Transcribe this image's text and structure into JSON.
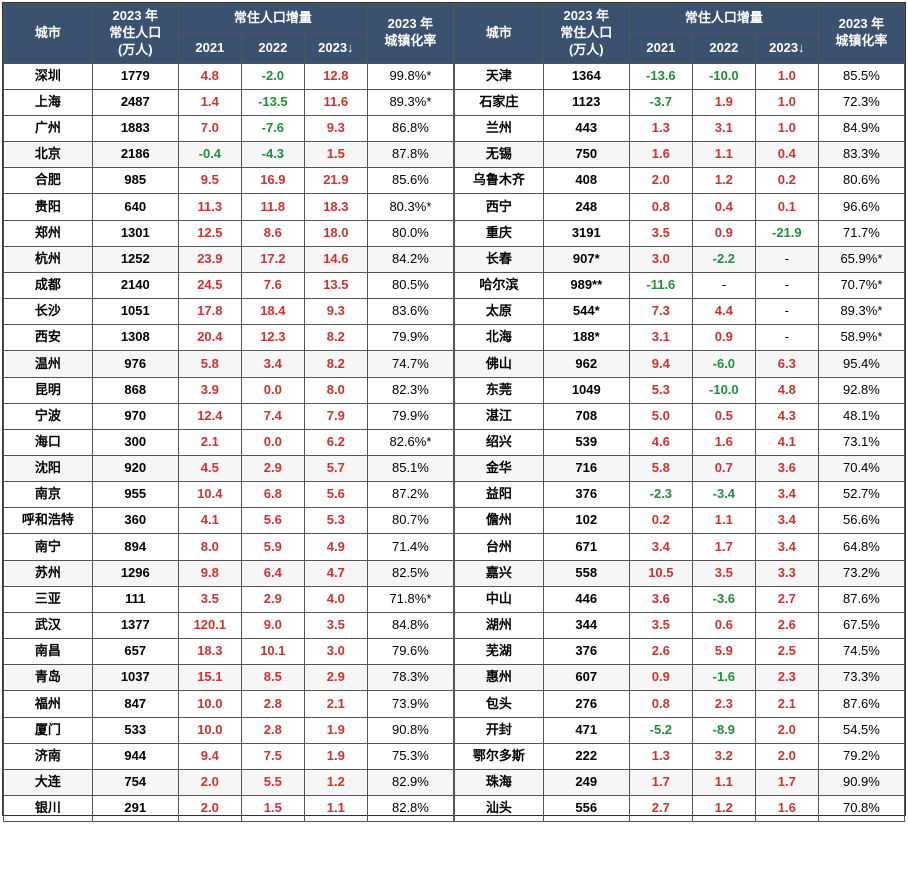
{
  "headers": {
    "city": "城市",
    "pop": "2023 年\n常住人口\n(万人)",
    "delta_group": "常住人口增量",
    "y2021": "2021",
    "y2022": "2022",
    "y2023": "2023↓",
    "urban": "2023 年\n城镇化率"
  },
  "colors": {
    "header_bg": "#3b5170",
    "header_fg": "#ffffff",
    "pos": "#d1322d",
    "neg": "#1f8f3b",
    "border": "#555555"
  },
  "left": [
    {
      "city": "深圳",
      "pop": "1779",
      "d21": "4.8",
      "d22": "-2.0",
      "d23": "12.8",
      "urb": "99.8%*"
    },
    {
      "city": "上海",
      "pop": "2487",
      "d21": "1.4",
      "d22": "-13.5",
      "d23": "11.6",
      "urb": "89.3%*"
    },
    {
      "city": "广州",
      "pop": "1883",
      "d21": "7.0",
      "d22": "-7.6",
      "d23": "9.3",
      "urb": "86.8%"
    },
    {
      "city": "北京",
      "pop": "2186",
      "d21": "-0.4",
      "d22": "-4.3",
      "d23": "1.5",
      "urb": "87.8%"
    },
    {
      "city": "合肥",
      "pop": "985",
      "d21": "9.5",
      "d22": "16.9",
      "d23": "21.9",
      "urb": "85.6%"
    },
    {
      "city": "贵阳",
      "pop": "640",
      "d21": "11.3",
      "d22": "11.8",
      "d23": "18.3",
      "urb": "80.3%*"
    },
    {
      "city": "郑州",
      "pop": "1301",
      "d21": "12.5",
      "d22": "8.6",
      "d23": "18.0",
      "urb": "80.0%"
    },
    {
      "city": "杭州",
      "pop": "1252",
      "d21": "23.9",
      "d22": "17.2",
      "d23": "14.6",
      "urb": "84.2%"
    },
    {
      "city": "成都",
      "pop": "2140",
      "d21": "24.5",
      "d22": "7.6",
      "d23": "13.5",
      "urb": "80.5%"
    },
    {
      "city": "长沙",
      "pop": "1051",
      "d21": "17.8",
      "d22": "18.4",
      "d23": "9.3",
      "urb": "83.6%"
    },
    {
      "city": "西安",
      "pop": "1308",
      "d21": "20.4",
      "d22": "12.3",
      "d23": "8.2",
      "urb": "79.9%"
    },
    {
      "city": "温州",
      "pop": "976",
      "d21": "5.8",
      "d22": "3.4",
      "d23": "8.2",
      "urb": "74.7%"
    },
    {
      "city": "昆明",
      "pop": "868",
      "d21": "3.9",
      "d22": "0.0",
      "d23": "8.0",
      "urb": "82.3%"
    },
    {
      "city": "宁波",
      "pop": "970",
      "d21": "12.4",
      "d22": "7.4",
      "d23": "7.9",
      "urb": "79.9%"
    },
    {
      "city": "海口",
      "pop": "300",
      "d21": "2.1",
      "d22": "0.0",
      "d23": "6.2",
      "urb": "82.6%*"
    },
    {
      "city": "沈阳",
      "pop": "920",
      "d21": "4.5",
      "d22": "2.9",
      "d23": "5.7",
      "urb": "85.1%"
    },
    {
      "city": "南京",
      "pop": "955",
      "d21": "10.4",
      "d22": "6.8",
      "d23": "5.6",
      "urb": "87.2%"
    },
    {
      "city": "呼和浩特",
      "pop": "360",
      "d21": "4.1",
      "d22": "5.6",
      "d23": "5.3",
      "urb": "80.7%"
    },
    {
      "city": "南宁",
      "pop": "894",
      "d21": "8.0",
      "d22": "5.9",
      "d23": "4.9",
      "urb": "71.4%"
    },
    {
      "city": "苏州",
      "pop": "1296",
      "d21": "9.8",
      "d22": "6.4",
      "d23": "4.7",
      "urb": "82.5%"
    },
    {
      "city": "三亚",
      "pop": "111",
      "d21": "3.5",
      "d22": "2.9",
      "d23": "4.0",
      "urb": "71.8%*"
    },
    {
      "city": "武汉",
      "pop": "1377",
      "d21": "120.1",
      "d22": "9.0",
      "d23": "3.5",
      "urb": "84.8%"
    },
    {
      "city": "南昌",
      "pop": "657",
      "d21": "18.3",
      "d22": "10.1",
      "d23": "3.0",
      "urb": "79.6%"
    },
    {
      "city": "青岛",
      "pop": "1037",
      "d21": "15.1",
      "d22": "8.5",
      "d23": "2.9",
      "urb": "78.3%"
    },
    {
      "city": "福州",
      "pop": "847",
      "d21": "10.0",
      "d22": "2.8",
      "d23": "2.1",
      "urb": "73.9%"
    },
    {
      "city": "厦门",
      "pop": "533",
      "d21": "10.0",
      "d22": "2.8",
      "d23": "1.9",
      "urb": "90.8%"
    },
    {
      "city": "济南",
      "pop": "944",
      "d21": "9.4",
      "d22": "7.5",
      "d23": "1.9",
      "urb": "75.3%"
    },
    {
      "city": "大连",
      "pop": "754",
      "d21": "2.0",
      "d22": "5.5",
      "d23": "1.2",
      "urb": "82.9%"
    },
    {
      "city": "银川",
      "pop": "291",
      "d21": "2.0",
      "d22": "1.5",
      "d23": "1.1",
      "urb": "82.8%"
    }
  ],
  "right": [
    {
      "city": "天津",
      "pop": "1364",
      "d21": "-13.6",
      "d22": "-10.0",
      "d23": "1.0",
      "urb": "85.5%"
    },
    {
      "city": "石家庄",
      "pop": "1123",
      "d21": "-3.7",
      "d22": "1.9",
      "d23": "1.0",
      "urb": "72.3%"
    },
    {
      "city": "兰州",
      "pop": "443",
      "d21": "1.3",
      "d22": "3.1",
      "d23": "1.0",
      "urb": "84.9%"
    },
    {
      "city": "无锡",
      "pop": "750",
      "d21": "1.6",
      "d22": "1.1",
      "d23": "0.4",
      "urb": "83.3%"
    },
    {
      "city": "乌鲁木齐",
      "pop": "408",
      "d21": "2.0",
      "d22": "1.2",
      "d23": "0.2",
      "urb": "80.6%"
    },
    {
      "city": "西宁",
      "pop": "248",
      "d21": "0.8",
      "d22": "0.4",
      "d23": "0.1",
      "urb": "96.6%"
    },
    {
      "city": "重庆",
      "pop": "3191",
      "d21": "3.5",
      "d22": "0.9",
      "d23": "-21.9",
      "urb": "71.7%"
    },
    {
      "city": "长春",
      "pop": "907*",
      "d21": "3.0",
      "d22": "-2.2",
      "d23": "-",
      "urb": "65.9%*"
    },
    {
      "city": "哈尔滨",
      "pop": "989**",
      "d21": "-11.6",
      "d22": "-",
      "d23": "-",
      "urb": "70.7%*"
    },
    {
      "city": "太原",
      "pop": "544*",
      "d21": "7.3",
      "d22": "4.4",
      "d23": "-",
      "urb": "89.3%*"
    },
    {
      "city": "北海",
      "pop": "188*",
      "d21": "3.1",
      "d22": "0.9",
      "d23": "-",
      "urb": "58.9%*"
    },
    {
      "city": "佛山",
      "pop": "962",
      "d21": "9.4",
      "d22": "-6.0",
      "d23": "6.3",
      "urb": "95.4%"
    },
    {
      "city": "东莞",
      "pop": "1049",
      "d21": "5.3",
      "d22": "-10.0",
      "d23": "4.8",
      "urb": "92.8%"
    },
    {
      "city": "湛江",
      "pop": "708",
      "d21": "5.0",
      "d22": "0.5",
      "d23": "4.3",
      "urb": "48.1%"
    },
    {
      "city": "绍兴",
      "pop": "539",
      "d21": "4.6",
      "d22": "1.6",
      "d23": "4.1",
      "urb": "73.1%"
    },
    {
      "city": "金华",
      "pop": "716",
      "d21": "5.8",
      "d22": "0.7",
      "d23": "3.6",
      "urb": "70.4%"
    },
    {
      "city": "益阳",
      "pop": "376",
      "d21": "-2.3",
      "d22": "-3.4",
      "d23": "3.4",
      "urb": "52.7%"
    },
    {
      "city": "儋州",
      "pop": "102",
      "d21": "0.2",
      "d22": "1.1",
      "d23": "3.4",
      "urb": "56.6%"
    },
    {
      "city": "台州",
      "pop": "671",
      "d21": "3.4",
      "d22": "1.7",
      "d23": "3.4",
      "urb": "64.8%"
    },
    {
      "city": "嘉兴",
      "pop": "558",
      "d21": "10.5",
      "d22": "3.5",
      "d23": "3.3",
      "urb": "73.2%"
    },
    {
      "city": "中山",
      "pop": "446",
      "d21": "3.6",
      "d22": "-3.6",
      "d23": "2.7",
      "urb": "87.6%"
    },
    {
      "city": "湖州",
      "pop": "344",
      "d21": "3.5",
      "d22": "0.6",
      "d23": "2.6",
      "urb": "67.5%"
    },
    {
      "city": "芜湖",
      "pop": "376",
      "d21": "2.6",
      "d22": "5.9",
      "d23": "2.5",
      "urb": "74.5%"
    },
    {
      "city": "惠州",
      "pop": "607",
      "d21": "0.9",
      "d22": "-1.6",
      "d23": "2.3",
      "urb": "73.3%"
    },
    {
      "city": "包头",
      "pop": "276",
      "d21": "0.8",
      "d22": "2.3",
      "d23": "2.1",
      "urb": "87.6%"
    },
    {
      "city": "开封",
      "pop": "471",
      "d21": "-5.2",
      "d22": "-8.9",
      "d23": "2.0",
      "urb": "54.5%"
    },
    {
      "city": "鄂尔多斯",
      "pop": "222",
      "d21": "1.3",
      "d22": "3.2",
      "d23": "2.0",
      "urb": "79.2%"
    },
    {
      "city": "珠海",
      "pop": "249",
      "d21": "1.7",
      "d22": "1.1",
      "d23": "1.7",
      "urb": "90.9%"
    },
    {
      "city": "汕头",
      "pop": "556",
      "d21": "2.7",
      "d22": "1.2",
      "d23": "1.6",
      "urb": "70.8%"
    }
  ]
}
